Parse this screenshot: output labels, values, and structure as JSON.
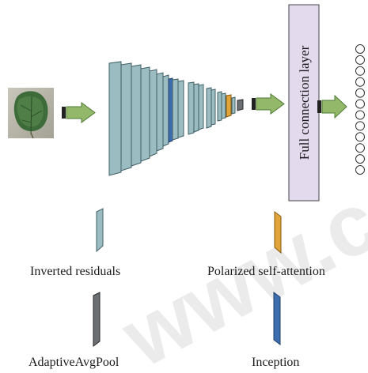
{
  "diagram": {
    "fc_layer_label": "Full connection layer",
    "output_neuron_count": 12,
    "legend": {
      "inverted_residuals": {
        "label": "Inverted residuals",
        "color": "#9bbcc0"
      },
      "polarized_self_attention": {
        "label": "Polarized self-attention",
        "color": "#e0a53a"
      },
      "adaptive_avg_pool": {
        "label": "AdaptiveAvgPool",
        "color": "#6b6e72"
      },
      "inception": {
        "label": "Inception",
        "color": "#3d6fb0"
      }
    },
    "colors": {
      "arrow_fill": "#94b86a",
      "arrow_stroke": "#4f7a35",
      "fc_fill": "#e4daee",
      "layer_edge": "#3f5f66",
      "watermark": "#d4d4d4"
    },
    "watermark_text": "www.c"
  }
}
